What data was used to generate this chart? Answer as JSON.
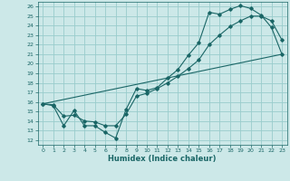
{
  "xlabel": "Humidex (Indice chaleur)",
  "bg_color": "#cce8e8",
  "grid_color": "#99cccc",
  "line_color": "#1a6666",
  "xlim": [
    -0.5,
    23.5
  ],
  "ylim": [
    11.5,
    26.5
  ],
  "xticks": [
    0,
    1,
    2,
    3,
    4,
    5,
    6,
    7,
    8,
    9,
    10,
    11,
    12,
    13,
    14,
    15,
    16,
    17,
    18,
    19,
    20,
    21,
    22,
    23
  ],
  "yticks": [
    12,
    13,
    14,
    15,
    16,
    17,
    18,
    19,
    20,
    21,
    22,
    23,
    24,
    25,
    26
  ],
  "line1_x": [
    0,
    1,
    2,
    3,
    4,
    5,
    6,
    7,
    8,
    9,
    10,
    11,
    12,
    13,
    14,
    15,
    16,
    17,
    18,
    19,
    20,
    21,
    22,
    23
  ],
  "line1_y": [
    15.8,
    15.6,
    13.5,
    15.1,
    13.5,
    13.5,
    12.8,
    12.2,
    15.2,
    17.4,
    17.2,
    17.5,
    18.5,
    19.4,
    20.9,
    22.2,
    25.4,
    25.2,
    25.7,
    26.1,
    25.8,
    25.1,
    23.8,
    21.0
  ],
  "line2_x": [
    0,
    23
  ],
  "line2_y": [
    15.8,
    21.0
  ],
  "line3_x": [
    0,
    1,
    2,
    3,
    4,
    5,
    6,
    7,
    8,
    9,
    10,
    11,
    12,
    13,
    14,
    15,
    16,
    17,
    18,
    19,
    20,
    21,
    22,
    23
  ],
  "line3_y": [
    15.8,
    15.7,
    14.5,
    14.6,
    14.0,
    13.9,
    13.5,
    13.5,
    14.7,
    16.6,
    16.9,
    17.4,
    18.0,
    18.7,
    19.5,
    20.4,
    22.0,
    23.0,
    23.9,
    24.5,
    25.0,
    25.0,
    24.5,
    22.5
  ]
}
